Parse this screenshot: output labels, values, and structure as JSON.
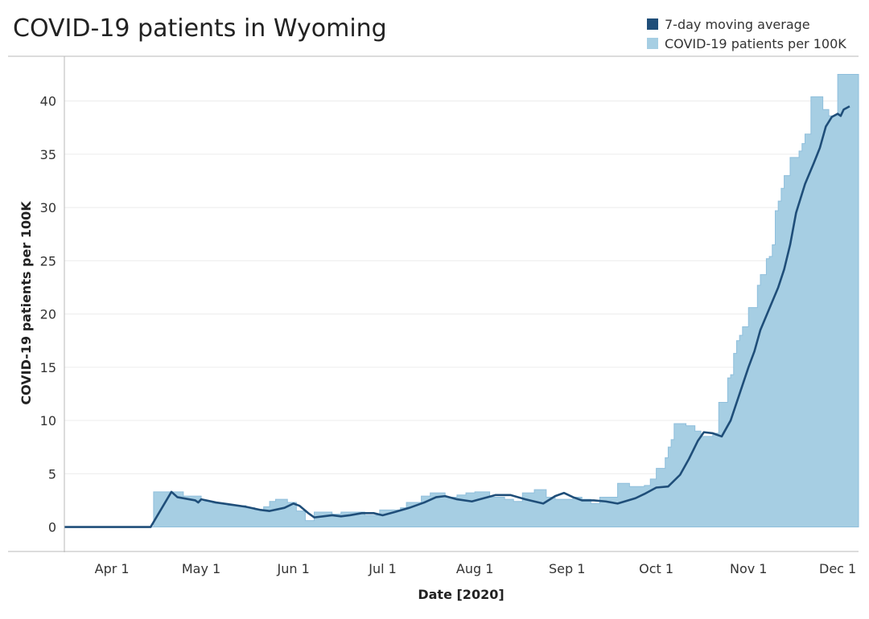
{
  "chart_data": {
    "type": "area",
    "title": "COVID-19 patients in Wyoming",
    "xlabel": "Date [2020]",
    "ylabel": "COVID-19 patients per 100K",
    "ylim": [
      -2.3,
      44.2
    ],
    "yticks": [
      0,
      5,
      10,
      15,
      20,
      25,
      30,
      35,
      40
    ],
    "xlim": [
      "2020-03-16",
      "2020-12-08"
    ],
    "xticks": [
      {
        "date": "2020-04-01",
        "label": "Apr 1"
      },
      {
        "date": "2020-05-01",
        "label": "May 1"
      },
      {
        "date": "2020-06-01",
        "label": "Jun 1"
      },
      {
        "date": "2020-07-01",
        "label": "Jul 1"
      },
      {
        "date": "2020-08-01",
        "label": "Aug 1"
      },
      {
        "date": "2020-09-01",
        "label": "Sep 1"
      },
      {
        "date": "2020-10-01",
        "label": "Oct 1"
      },
      {
        "date": "2020-11-01",
        "label": "Nov 1"
      },
      {
        "date": "2020-12-01",
        "label": "Dec 1"
      }
    ],
    "grid": true,
    "legend": {
      "position": "top-right",
      "items": [
        {
          "label": "7-day moving average",
          "color": "#1f4e79"
        },
        {
          "label": "COVID-19 patients per 100K",
          "color": "#a6cee3"
        }
      ]
    },
    "series": [
      {
        "name": "COVID-19 patients per 100K",
        "kind": "step-area",
        "color": "#a6cee3",
        "points": [
          [
            "2020-03-16",
            0
          ],
          [
            "2020-04-14",
            0
          ],
          [
            "2020-04-15",
            3.3
          ],
          [
            "2020-04-25",
            2.9
          ],
          [
            "2020-05-01",
            2.4
          ],
          [
            "2020-05-05",
            2.2
          ],
          [
            "2020-05-10",
            2.0
          ],
          [
            "2020-05-16",
            1.8
          ],
          [
            "2020-05-19",
            1.6
          ],
          [
            "2020-05-22",
            1.9
          ],
          [
            "2020-05-24",
            2.4
          ],
          [
            "2020-05-26",
            2.6
          ],
          [
            "2020-05-30",
            2.3
          ],
          [
            "2020-06-02",
            1.5
          ],
          [
            "2020-06-05",
            0.6
          ],
          [
            "2020-06-08",
            1.4
          ],
          [
            "2020-06-14",
            1.2
          ],
          [
            "2020-06-17",
            1.4
          ],
          [
            "2020-06-25",
            1.1
          ],
          [
            "2020-06-30",
            1.6
          ],
          [
            "2020-07-07",
            1.8
          ],
          [
            "2020-07-09",
            2.3
          ],
          [
            "2020-07-14",
            2.9
          ],
          [
            "2020-07-17",
            3.2
          ],
          [
            "2020-07-22",
            2.8
          ],
          [
            "2020-07-26",
            3.0
          ],
          [
            "2020-07-29",
            3.2
          ],
          [
            "2020-08-01",
            3.3
          ],
          [
            "2020-08-06",
            2.8
          ],
          [
            "2020-08-11",
            2.6
          ],
          [
            "2020-08-14",
            2.4
          ],
          [
            "2020-08-17",
            3.2
          ],
          [
            "2020-08-21",
            3.5
          ],
          [
            "2020-08-25",
            2.8
          ],
          [
            "2020-08-28",
            2.6
          ],
          [
            "2020-09-03",
            2.8
          ],
          [
            "2020-09-06",
            2.6
          ],
          [
            "2020-09-09",
            2.2
          ],
          [
            "2020-09-12",
            2.8
          ],
          [
            "2020-09-18",
            4.1
          ],
          [
            "2020-09-22",
            3.8
          ],
          [
            "2020-09-27",
            3.9
          ],
          [
            "2020-09-29",
            4.5
          ],
          [
            "2020-10-01",
            5.5
          ],
          [
            "2020-10-04",
            6.5
          ],
          [
            "2020-10-05",
            7.5
          ],
          [
            "2020-10-06",
            8.2
          ],
          [
            "2020-10-07",
            9.7
          ],
          [
            "2020-10-11",
            9.5
          ],
          [
            "2020-10-14",
            9.0
          ],
          [
            "2020-10-16",
            8.5
          ],
          [
            "2020-10-20",
            8.8
          ],
          [
            "2020-10-22",
            11.7
          ],
          [
            "2020-10-25",
            14.0
          ],
          [
            "2020-10-26",
            14.3
          ],
          [
            "2020-10-27",
            16.3
          ],
          [
            "2020-10-28",
            17.5
          ],
          [
            "2020-10-29",
            18.0
          ],
          [
            "2020-10-30",
            18.8
          ],
          [
            "2020-11-01",
            20.6
          ],
          [
            "2020-11-04",
            22.7
          ],
          [
            "2020-11-05",
            23.7
          ],
          [
            "2020-11-07",
            25.2
          ],
          [
            "2020-11-08",
            25.4
          ],
          [
            "2020-11-09",
            26.5
          ],
          [
            "2020-11-10",
            29.7
          ],
          [
            "2020-11-11",
            30.6
          ],
          [
            "2020-11-12",
            31.8
          ],
          [
            "2020-11-13",
            33.0
          ],
          [
            "2020-11-15",
            34.7
          ],
          [
            "2020-11-18",
            35.3
          ],
          [
            "2020-11-19",
            36.0
          ],
          [
            "2020-11-20",
            36.9
          ],
          [
            "2020-11-22",
            40.4
          ],
          [
            "2020-11-26",
            39.2
          ],
          [
            "2020-11-28",
            38.6
          ],
          [
            "2020-12-01",
            42.5
          ],
          [
            "2020-12-05",
            42.5
          ]
        ]
      },
      {
        "name": "7-day moving average",
        "kind": "line",
        "color": "#1f4e79",
        "points": [
          [
            "2020-03-16",
            0
          ],
          [
            "2020-04-14",
            0
          ],
          [
            "2020-04-21",
            3.3
          ],
          [
            "2020-04-23",
            2.8
          ],
          [
            "2020-04-29",
            2.5
          ],
          [
            "2020-04-30",
            2.3
          ],
          [
            "2020-05-01",
            2.6
          ],
          [
            "2020-05-06",
            2.3
          ],
          [
            "2020-05-11",
            2.1
          ],
          [
            "2020-05-16",
            1.9
          ],
          [
            "2020-05-21",
            1.6
          ],
          [
            "2020-05-24",
            1.5
          ],
          [
            "2020-05-29",
            1.8
          ],
          [
            "2020-06-01",
            2.2
          ],
          [
            "2020-06-03",
            2.0
          ],
          [
            "2020-06-06",
            1.3
          ],
          [
            "2020-06-08",
            0.9
          ],
          [
            "2020-06-11",
            1.0
          ],
          [
            "2020-06-14",
            1.1
          ],
          [
            "2020-06-17",
            1.0
          ],
          [
            "2020-06-20",
            1.1
          ],
          [
            "2020-06-24",
            1.3
          ],
          [
            "2020-06-28",
            1.3
          ],
          [
            "2020-07-01",
            1.1
          ],
          [
            "2020-07-05",
            1.4
          ],
          [
            "2020-07-10",
            1.8
          ],
          [
            "2020-07-15",
            2.3
          ],
          [
            "2020-07-19",
            2.8
          ],
          [
            "2020-07-22",
            2.9
          ],
          [
            "2020-07-26",
            2.6
          ],
          [
            "2020-07-31",
            2.4
          ],
          [
            "2020-08-04",
            2.7
          ],
          [
            "2020-08-08",
            3.0
          ],
          [
            "2020-08-13",
            3.0
          ],
          [
            "2020-08-18",
            2.6
          ],
          [
            "2020-08-24",
            2.2
          ],
          [
            "2020-08-28",
            2.9
          ],
          [
            "2020-08-31",
            3.2
          ],
          [
            "2020-09-03",
            2.8
          ],
          [
            "2020-09-06",
            2.5
          ],
          [
            "2020-09-10",
            2.5
          ],
          [
            "2020-09-14",
            2.4
          ],
          [
            "2020-09-18",
            2.2
          ],
          [
            "2020-09-24",
            2.7
          ],
          [
            "2020-09-27",
            3.1
          ],
          [
            "2020-10-01",
            3.7
          ],
          [
            "2020-10-05",
            3.8
          ],
          [
            "2020-10-09",
            4.9
          ],
          [
            "2020-10-12",
            6.4
          ],
          [
            "2020-10-15",
            8.1
          ],
          [
            "2020-10-17",
            8.9
          ],
          [
            "2020-10-20",
            8.8
          ],
          [
            "2020-10-23",
            8.5
          ],
          [
            "2020-10-26",
            10.0
          ],
          [
            "2020-10-29",
            12.5
          ],
          [
            "2020-11-01",
            15.0
          ],
          [
            "2020-11-03",
            16.5
          ],
          [
            "2020-11-05",
            18.5
          ],
          [
            "2020-11-08",
            20.5
          ],
          [
            "2020-11-11",
            22.5
          ],
          [
            "2020-11-13",
            24.2
          ],
          [
            "2020-11-15",
            26.5
          ],
          [
            "2020-11-17",
            29.5
          ],
          [
            "2020-11-20",
            32.2
          ],
          [
            "2020-11-23",
            34.2
          ],
          [
            "2020-11-25",
            35.6
          ],
          [
            "2020-11-27",
            37.6
          ],
          [
            "2020-11-29",
            38.5
          ],
          [
            "2020-12-01",
            38.8
          ],
          [
            "2020-12-02",
            38.6
          ],
          [
            "2020-12-03",
            39.2
          ],
          [
            "2020-12-05",
            39.5
          ]
        ]
      }
    ]
  }
}
